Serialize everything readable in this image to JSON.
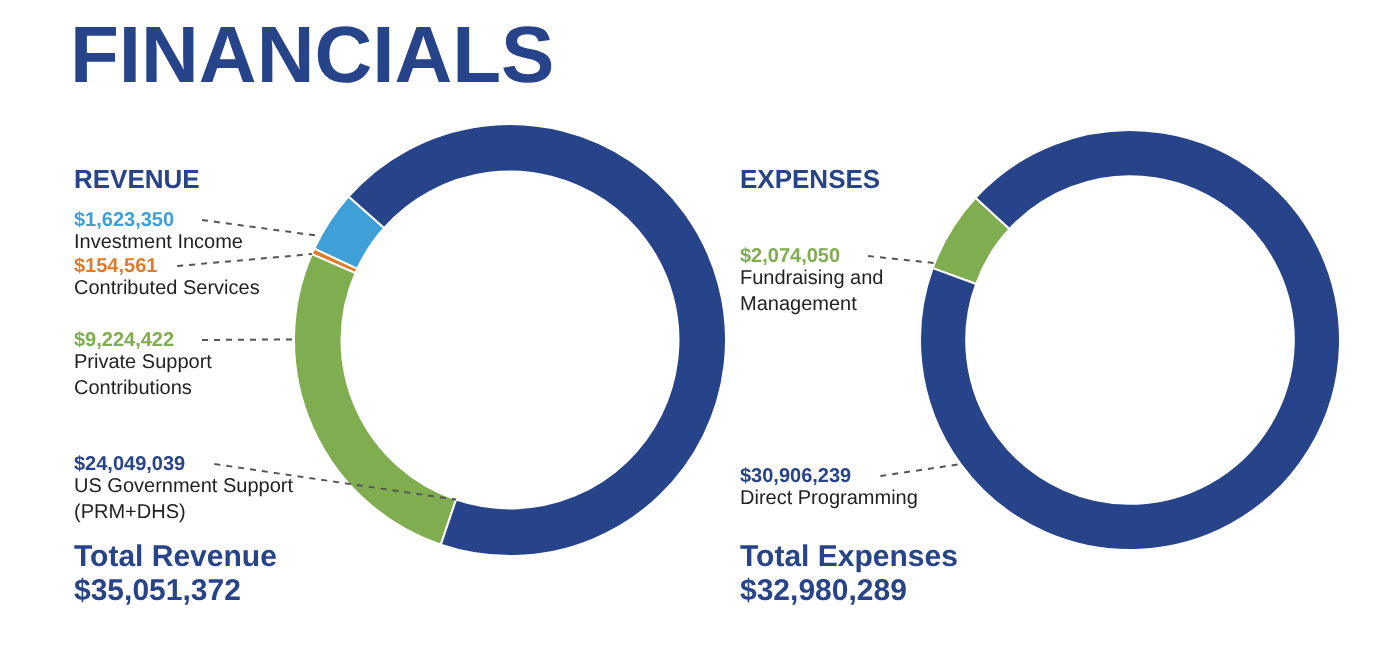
{
  "chart_data": [
    {
      "type": "donut",
      "title": "FINANCIALS",
      "subtitle": "REVENUE",
      "categories": [
        "Investment Income",
        "Contributed Services",
        "Private Support Contributions",
        "US Government Support (PRM+DHS)"
      ],
      "values": [
        1623350,
        154561,
        9224422,
        24049039
      ],
      "value_labels": [
        "$1,623,350",
        "$154,561",
        "$9,224,422",
        "$24,049,039"
      ],
      "colors": [
        "#3fa0d8",
        "#e07b2a",
        "#80ad50",
        "#27438a"
      ],
      "annotations": [
        "Total Revenue",
        "$35,051,372"
      ]
    },
    {
      "type": "donut",
      "subtitle": "EXPENSES",
      "categories": [
        "Fundraising and Management",
        "Direct Programming"
      ],
      "values": [
        2074050,
        30906239
      ],
      "value_labels": [
        "$2,074,050",
        "$30,906,239"
      ],
      "colors": [
        "#80ad50",
        "#27438a"
      ],
      "annotations": [
        "Total Expenses",
        "$32,980,289"
      ]
    }
  ]
}
